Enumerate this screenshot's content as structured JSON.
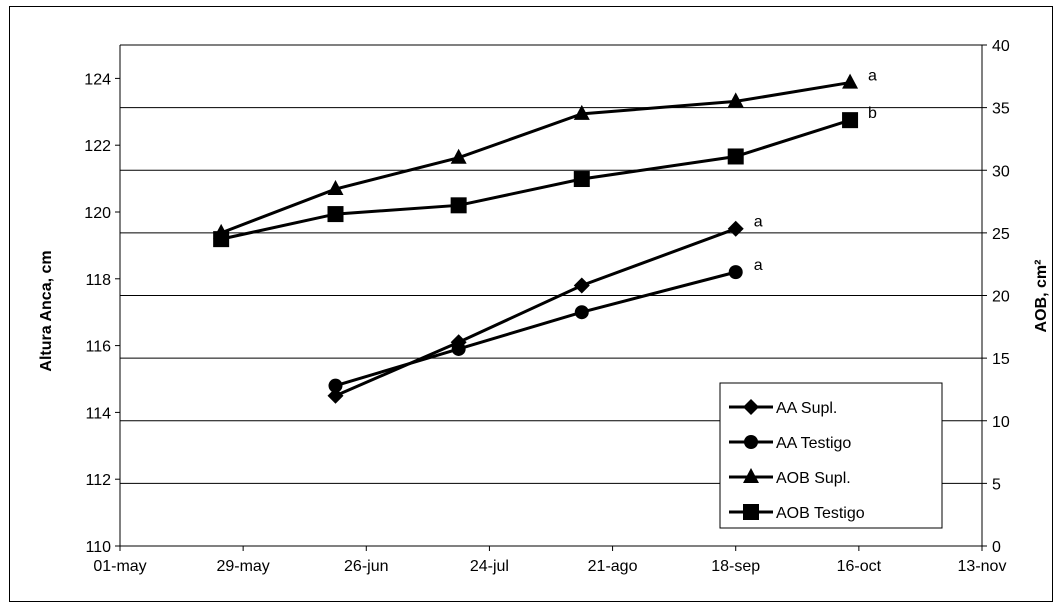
{
  "chart_data": {
    "type": "line",
    "x_axis": {
      "ticks": [
        "01-may",
        "29-may",
        "26-jun",
        "24-jul",
        "21-ago",
        "18-sep",
        "16-oct",
        "13-nov"
      ],
      "range": [
        "2000-05-01",
        "2000-11-13"
      ]
    },
    "y_left": {
      "label": "Altura Anca, cm",
      "range": [
        110,
        125
      ],
      "ticks": [
        110,
        112,
        114,
        116,
        118,
        120,
        122,
        124
      ]
    },
    "y_right": {
      "label": "AOB, cm²",
      "range": [
        0,
        40
      ],
      "ticks": [
        0,
        5,
        10,
        15,
        20,
        25,
        30,
        35,
        40
      ]
    },
    "grid": "horizontal",
    "legend_position": "bottom-right",
    "series": [
      {
        "name": "AA Supl.",
        "axis": "left",
        "marker": "diamond",
        "points": [
          [
            "2000-06-19",
            114.5
          ],
          [
            "2000-07-17",
            116.1
          ],
          [
            "2000-08-14",
            117.8
          ],
          [
            "2000-09-18",
            119.5
          ]
        ],
        "significance": "a"
      },
      {
        "name": "AA Testigo",
        "axis": "left",
        "marker": "circle",
        "points": [
          [
            "2000-06-19",
            114.8
          ],
          [
            "2000-07-17",
            115.9
          ],
          [
            "2000-08-14",
            117.0
          ],
          [
            "2000-09-18",
            118.2
          ]
        ],
        "significance": "a"
      },
      {
        "name": "AOB Supl.",
        "axis": "right",
        "marker": "triangle",
        "points": [
          [
            "2000-05-24",
            25.0
          ],
          [
            "2000-06-19",
            28.5
          ],
          [
            "2000-07-17",
            31.0
          ],
          [
            "2000-08-14",
            34.5
          ],
          [
            "2000-09-18",
            35.5
          ],
          [
            "2000-10-14",
            37.0
          ]
        ],
        "significance": "a"
      },
      {
        "name": "AOB Testigo",
        "axis": "right",
        "marker": "square",
        "points": [
          [
            "2000-05-24",
            24.5
          ],
          [
            "2000-06-19",
            26.5
          ],
          [
            "2000-07-17",
            27.2
          ],
          [
            "2000-08-14",
            29.3
          ],
          [
            "2000-09-18",
            31.1
          ],
          [
            "2000-10-14",
            34.0
          ]
        ],
        "significance": "b"
      }
    ]
  }
}
